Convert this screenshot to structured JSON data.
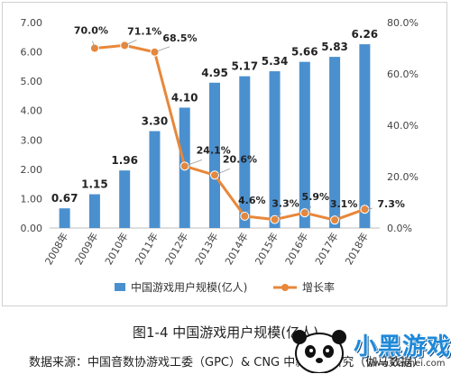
{
  "chart_data": {
    "type": "bar",
    "categories": [
      "2008年",
      "2009年",
      "2010年",
      "2011年",
      "2012年",
      "2013年",
      "2014年",
      "2015年",
      "2016年",
      "2017年",
      "2018年"
    ],
    "series": [
      {
        "name": "中国游戏用户规模(亿人)",
        "type": "bar",
        "axis": "left",
        "values": [
          0.67,
          1.15,
          1.96,
          3.3,
          4.1,
          4.95,
          5.17,
          5.34,
          5.66,
          5.83,
          6.26
        ],
        "labels": [
          "0.67",
          "1.15",
          "1.96",
          "3.30",
          "4.10",
          "4.95",
          "5.17",
          "5.34",
          "5.66",
          "5.83",
          "6.26"
        ]
      },
      {
        "name": "增长率",
        "type": "line",
        "axis": "right",
        "values": [
          null,
          70.0,
          71.1,
          68.5,
          24.1,
          20.6,
          4.6,
          3.3,
          5.9,
          3.1,
          7.3
        ],
        "labels": [
          null,
          "70.0%",
          "71.1%",
          "68.5%",
          "24.1%",
          "20.6%",
          "4.6%",
          "3.3%",
          "5.9%",
          "3.1%",
          "7.3%"
        ]
      }
    ],
    "ylim": [
      0,
      7
    ],
    "y_ticks": [
      "0.00",
      "1.00",
      "2.00",
      "3.00",
      "4.00",
      "5.00",
      "6.00",
      "7.00"
    ],
    "y2lim": [
      0,
      80
    ],
    "y2_ticks": [
      "0.0%",
      "20.0%",
      "40.0%",
      "60.0%",
      "80.0%"
    ],
    "legend_position": "bottom",
    "grid": false,
    "colors": {
      "bar": "#4a90cf",
      "line": "#e8873a"
    }
  },
  "caption": "图1-4  中国游戏用户规模(亿人)",
  "source": "数据来源：中国音数协游戏工委（GPC）& CNG 中新游戏研究（伽马数据）",
  "watermark": {
    "title": "小黑游戏",
    "url": "www.xiaohei.com"
  }
}
